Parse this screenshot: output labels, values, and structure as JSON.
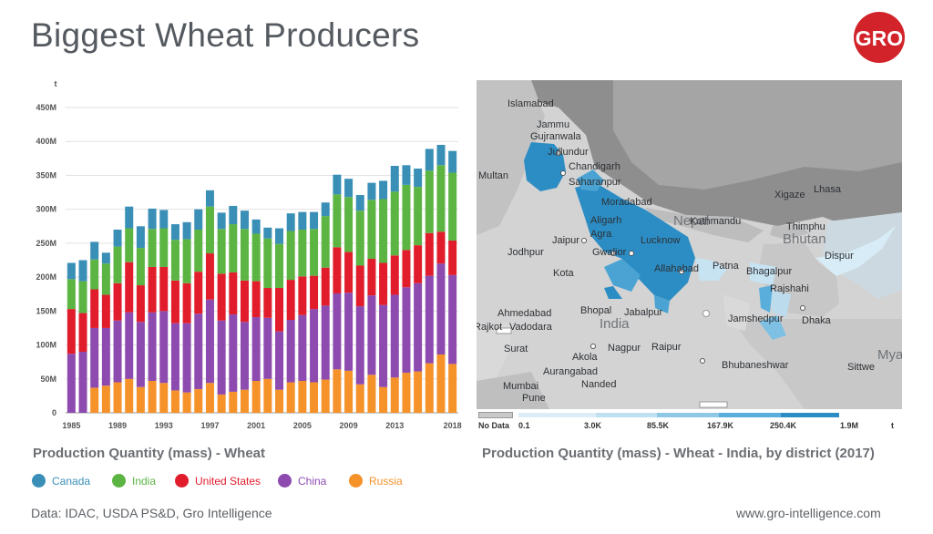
{
  "page_title": "Biggest Wheat Producers",
  "logo_text": "GRO",
  "colors": {
    "canada": "#3a8fb7",
    "india": "#5cb443",
    "united_states": "#e11d2c",
    "china": "#8d4bb0",
    "russia": "#f6922a",
    "brand_red": "#d2232a"
  },
  "chart_data": {
    "type": "bar",
    "stacked": true,
    "title": "Production Quantity (mass) - Wheat",
    "ylabel": "t",
    "ylim": [
      0,
      450000000
    ],
    "yticks": [
      "0",
      "50M",
      "100M",
      "150M",
      "200M",
      "250M",
      "300M",
      "350M",
      "400M",
      "450M"
    ],
    "xticks": [
      "1985",
      "1989",
      "1993",
      "1997",
      "2001",
      "2005",
      "2009",
      "2013",
      "2018"
    ],
    "grid": true,
    "legend_position": "bottom",
    "categories": [
      "1985",
      "1986",
      "1987",
      "1988",
      "1989",
      "1990",
      "1991",
      "1992",
      "1993",
      "1994",
      "1995",
      "1996",
      "1997",
      "1998",
      "1999",
      "2000",
      "2001",
      "2002",
      "2003",
      "2004",
      "2005",
      "2006",
      "2007",
      "2008",
      "2009",
      "2010",
      "2011",
      "2012",
      "2013",
      "2014",
      "2015",
      "2016",
      "2017",
      "2018"
    ],
    "series": [
      {
        "name": "Russia",
        "values": [
          0,
          0,
          37,
          40,
          45,
          50,
          38,
          47,
          44,
          33,
          30,
          35,
          44,
          27,
          31,
          34,
          47,
          50,
          34,
          45,
          47,
          45,
          49,
          64,
          62,
          42,
          56,
          38,
          52,
          59,
          61,
          73,
          86,
          72
        ]
      },
      {
        "name": "China",
        "values": [
          87,
          90,
          88,
          85,
          91,
          98,
          96,
          101,
          106,
          99,
          102,
          111,
          123,
          109,
          114,
          100,
          94,
          90,
          86,
          92,
          97,
          108,
          109,
          112,
          115,
          115,
          117,
          121,
          122,
          126,
          130,
          129,
          134,
          131
        ]
      },
      {
        "name": "United States",
        "values": [
          66,
          57,
          57,
          49,
          55,
          74,
          54,
          67,
          65,
          63,
          59,
          62,
          68,
          69,
          62,
          61,
          53,
          44,
          64,
          59,
          57,
          49,
          56,
          68,
          60,
          60,
          54,
          62,
          58,
          55,
          56,
          63,
          47,
          51
        ]
      },
      {
        "name": "India",
        "values": [
          44,
          47,
          44,
          46,
          54,
          50,
          55,
          56,
          57,
          60,
          65,
          62,
          69,
          66,
          71,
          76,
          70,
          73,
          65,
          72,
          69,
          69,
          76,
          78,
          81,
          81,
          87,
          94,
          94,
          96,
          86,
          92,
          98,
          100
        ]
      },
      {
        "name": "Canada",
        "values": [
          24,
          31,
          26,
          16,
          25,
          32,
          32,
          30,
          27,
          23,
          25,
          30,
          24,
          24,
          27,
          27,
          21,
          16,
          23,
          26,
          26,
          25,
          20,
          29,
          27,
          23,
          25,
          27,
          38,
          29,
          27,
          32,
          30,
          32
        ]
      }
    ]
  },
  "legend": [
    "Canada",
    "India",
    "United States",
    "China",
    "Russia"
  ],
  "map": {
    "caption": "Production Quantity (mass) - Wheat - India, by district (2017)",
    "labels": [
      "Islamabad",
      "Jammu",
      "Gujranwala",
      "Jullundur",
      "Chandigarh",
      "Multan",
      "Saharanpur",
      "Moradabad",
      "Aligarh",
      "Agra",
      "Jaipur",
      "Gwalior",
      "Lucknow",
      "Nepal",
      "Kathmandu",
      "Thimphu",
      "Bhutan",
      "Xigaze",
      "Lhasa",
      "Dispur",
      "Jodhpur",
      "Allahabad",
      "Patna",
      "Bhagalpur",
      "Rajshahi",
      "Kota",
      "Ahmedabad",
      "Bhopal",
      "Jabalpur",
      "India",
      "Jamshedpur",
      "Dhaka",
      "Rajkot",
      "Vadodara",
      "Surat",
      "Akola",
      "Nagpur",
      "Raipur",
      "Aurangabad",
      "Bhubaneshwar",
      "Sittwe",
      "Mumbai",
      "Pune",
      "Nanded",
      "Mya"
    ],
    "scale": {
      "no_data": "No Data",
      "ticks": [
        "0.1",
        "3.0K",
        "85.5K",
        "167.9K",
        "250.4K",
        "1.9M"
      ],
      "unit": "t"
    }
  },
  "source_text": "Data: IDAC, USDA PS&D, Gro Intelligence",
  "website_text": "www.gro-intelligence.com"
}
